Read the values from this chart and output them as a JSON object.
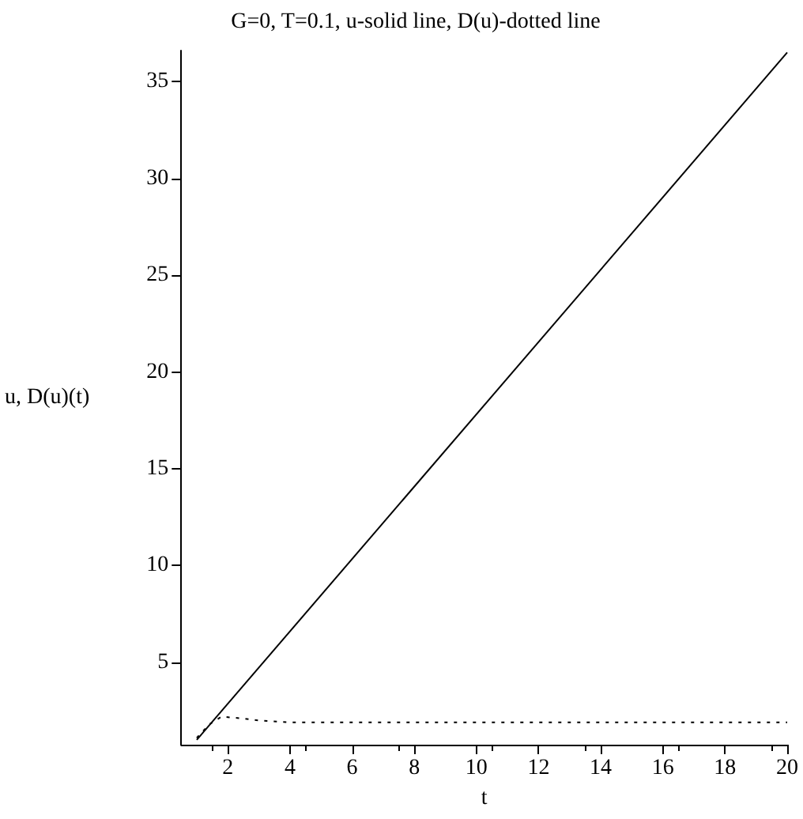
{
  "chart_data": {
    "type": "line",
    "title": "G=0, T=0.1, u-solid line, D(u)-dotted line",
    "xlabel": "t",
    "ylabel": "u, D(u)(t)",
    "xlim": [
      0.5,
      20
    ],
    "xticks": [
      2,
      4,
      6,
      8,
      10,
      12,
      14,
      16,
      18,
      20
    ],
    "ylim": [
      0.75,
      36.6
    ],
    "yticks": [
      5,
      10,
      15,
      20,
      25,
      30,
      35
    ],
    "grid": false,
    "marker": "none",
    "series": [
      {
        "color": "#000000",
        "line_style": "solid",
        "x": [
          1,
          20
        ],
        "values": [
          1.0,
          36.5
        ]
      },
      {
        "color": "#000000",
        "line_style": "dotted",
        "x": [
          1,
          1.4,
          1.8,
          2.5,
          3,
          4,
          5,
          8,
          12,
          16,
          20
        ],
        "values": [
          1.1,
          1.8,
          2.2,
          2.1,
          2.0,
          1.9,
          1.9,
          1.9,
          1.9,
          1.9,
          1.9
        ]
      }
    ]
  }
}
